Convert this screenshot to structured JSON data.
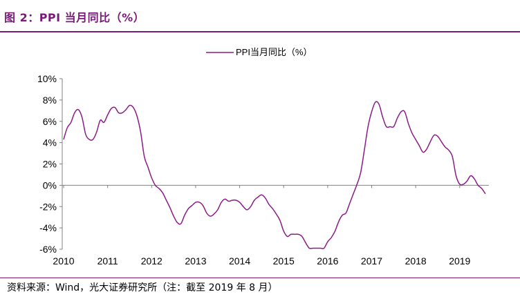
{
  "figure": {
    "title": "图 2：PPI 当月同比（%）",
    "source": "资料来源：Wind，光大证券研究所（注：截至 2019 年 8 月）"
  },
  "chart_data": {
    "type": "line",
    "title": "",
    "xlabel": "",
    "ylabel": "",
    "ylim": [
      -6,
      10
    ],
    "y_ticks": [
      "-6%",
      "-4%",
      "-2%",
      "0%",
      "2%",
      "4%",
      "6%",
      "8%",
      "10%"
    ],
    "x_ticks": [
      "2010",
      "2011",
      "2012",
      "2013",
      "2014",
      "2015",
      "2016",
      "2017",
      "2018",
      "2019"
    ],
    "grid": false,
    "legend_position": "top-center",
    "color": "#8b1a89",
    "series": [
      {
        "name": "PPI当月同比（%）",
        "x": [
          "2010-01",
          "2010-02",
          "2010-03",
          "2010-04",
          "2010-05",
          "2010-06",
          "2010-07",
          "2010-08",
          "2010-09",
          "2010-10",
          "2010-11",
          "2010-12",
          "2011-01",
          "2011-02",
          "2011-03",
          "2011-04",
          "2011-05",
          "2011-06",
          "2011-07",
          "2011-08",
          "2011-09",
          "2011-10",
          "2011-11",
          "2011-12",
          "2012-01",
          "2012-02",
          "2012-03",
          "2012-04",
          "2012-05",
          "2012-06",
          "2012-07",
          "2012-08",
          "2012-09",
          "2012-10",
          "2012-11",
          "2012-12",
          "2013-01",
          "2013-02",
          "2013-03",
          "2013-04",
          "2013-05",
          "2013-06",
          "2013-07",
          "2013-08",
          "2013-09",
          "2013-10",
          "2013-11",
          "2013-12",
          "2014-01",
          "2014-02",
          "2014-03",
          "2014-04",
          "2014-05",
          "2014-06",
          "2014-07",
          "2014-08",
          "2014-09",
          "2014-10",
          "2014-11",
          "2014-12",
          "2015-01",
          "2015-02",
          "2015-03",
          "2015-04",
          "2015-05",
          "2015-06",
          "2015-07",
          "2015-08",
          "2015-09",
          "2015-10",
          "2015-11",
          "2015-12",
          "2016-01",
          "2016-02",
          "2016-03",
          "2016-04",
          "2016-05",
          "2016-06",
          "2016-07",
          "2016-08",
          "2016-09",
          "2016-10",
          "2016-11",
          "2016-12",
          "2017-01",
          "2017-02",
          "2017-03",
          "2017-04",
          "2017-05",
          "2017-06",
          "2017-07",
          "2017-08",
          "2017-09",
          "2017-10",
          "2017-11",
          "2017-12",
          "2018-01",
          "2018-02",
          "2018-03",
          "2018-04",
          "2018-05",
          "2018-06",
          "2018-07",
          "2018-08",
          "2018-09",
          "2018-10",
          "2018-11",
          "2018-12",
          "2019-01",
          "2019-02",
          "2019-03",
          "2019-04",
          "2019-05",
          "2019-06",
          "2019-07",
          "2019-08"
        ],
        "values": [
          4.3,
          5.4,
          5.9,
          6.8,
          7.1,
          6.4,
          4.8,
          4.3,
          4.3,
          5.0,
          6.1,
          5.9,
          6.6,
          7.2,
          7.3,
          6.8,
          6.8,
          7.1,
          7.5,
          7.3,
          6.5,
          5.0,
          2.7,
          1.7,
          0.7,
          0.0,
          -0.3,
          -0.7,
          -1.4,
          -2.1,
          -2.9,
          -3.5,
          -3.6,
          -2.8,
          -2.2,
          -1.9,
          -1.6,
          -1.6,
          -1.9,
          -2.6,
          -2.9,
          -2.7,
          -2.3,
          -1.6,
          -1.3,
          -1.5,
          -1.4,
          -1.4,
          -1.6,
          -2.0,
          -2.3,
          -2.0,
          -1.4,
          -1.1,
          -0.9,
          -1.2,
          -1.8,
          -2.2,
          -2.7,
          -3.3,
          -4.3,
          -4.8,
          -4.6,
          -4.6,
          -4.6,
          -4.8,
          -5.4,
          -5.9,
          -5.9,
          -5.9,
          -5.9,
          -5.9,
          -5.3,
          -4.9,
          -4.3,
          -3.4,
          -2.8,
          -2.6,
          -1.7,
          -0.8,
          0.1,
          1.2,
          3.3,
          5.5,
          6.9,
          7.8,
          7.6,
          6.4,
          5.5,
          5.5,
          5.5,
          6.3,
          6.9,
          6.9,
          5.8,
          4.9,
          4.3,
          3.7,
          3.1,
          3.4,
          4.1,
          4.7,
          4.6,
          4.1,
          3.6,
          3.3,
          2.7,
          0.9,
          0.1,
          0.1,
          0.4,
          0.9,
          0.6,
          0.0,
          -0.3,
          -0.8
        ]
      }
    ]
  }
}
